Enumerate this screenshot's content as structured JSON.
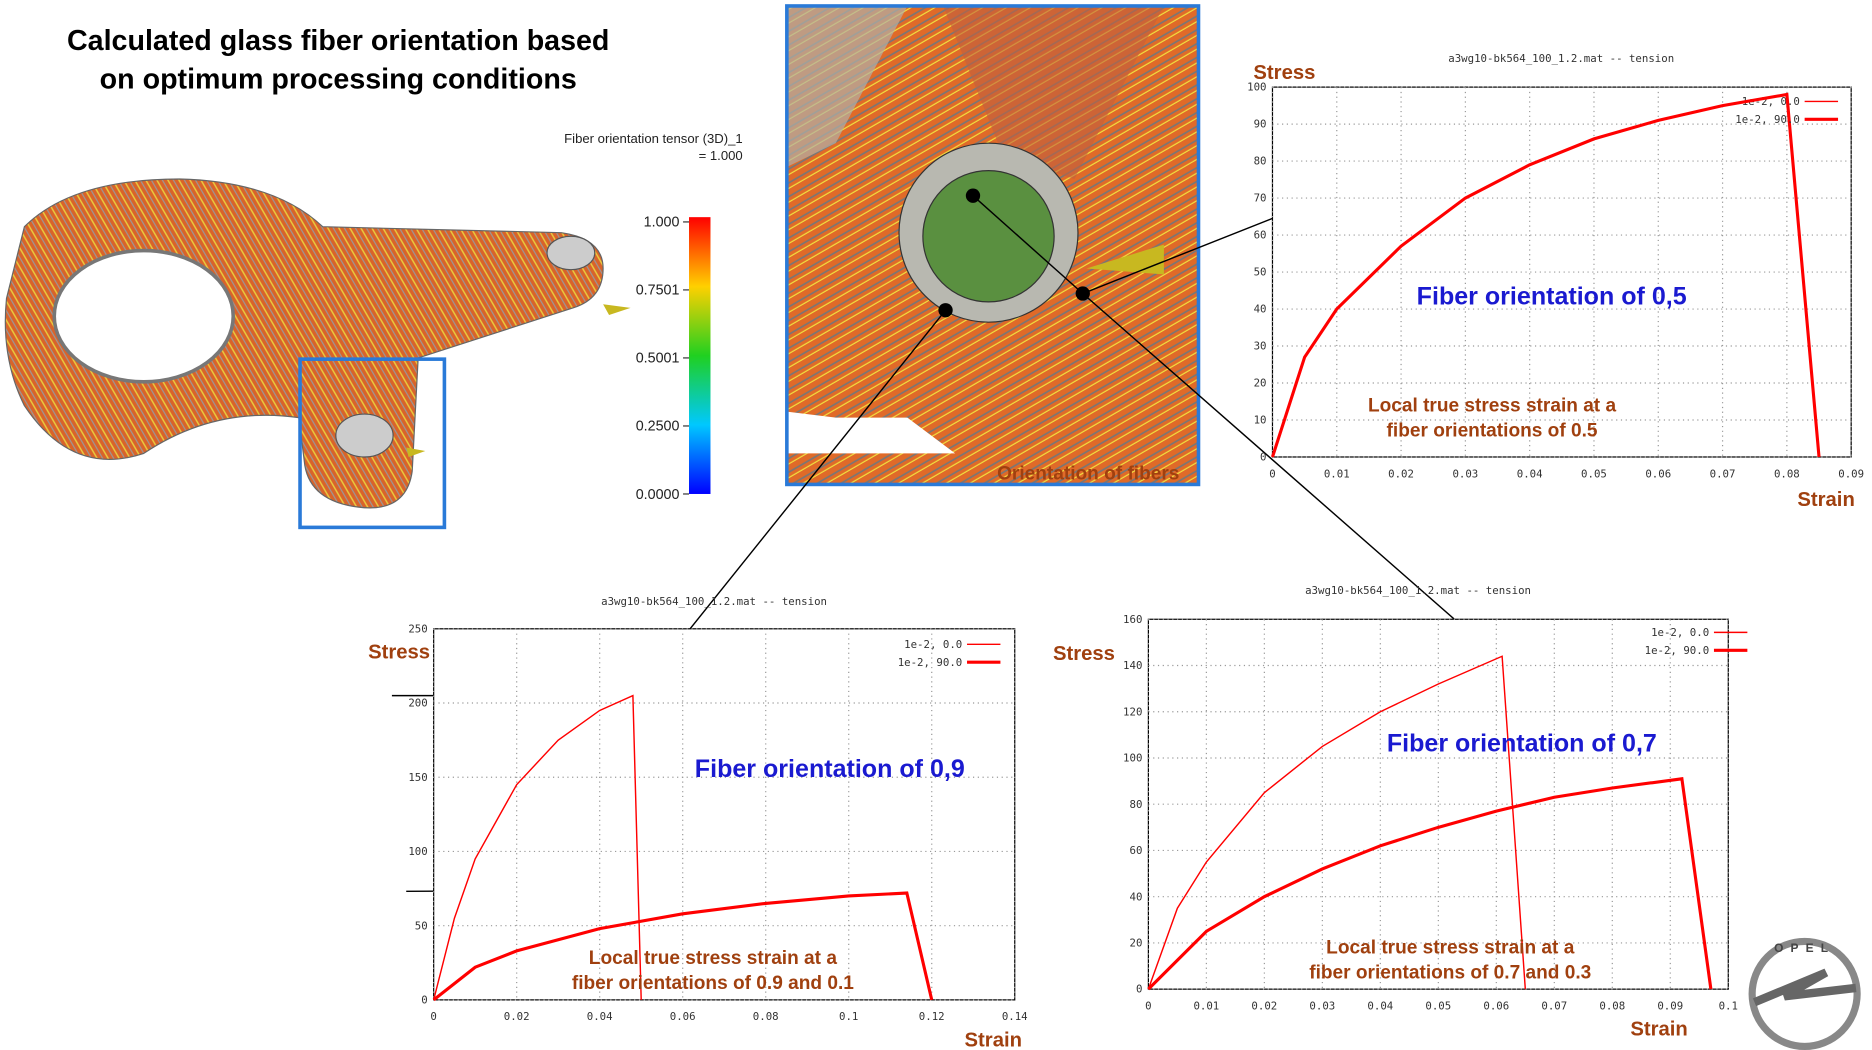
{
  "header": {
    "title": [
      "Calculated glass fiber orientation based",
      "on optimum processing conditions"
    ]
  },
  "colorbar": {
    "title": [
      "Fiber orientation tensor (3D)_1",
      "= 1.000"
    ],
    "lim": [
      0,
      1
    ],
    "ticks": [
      {
        "value": 1,
        "label": "1.000"
      },
      {
        "value": 0.7501,
        "label": "0.7501"
      },
      {
        "value": 0.5001,
        "label": "0.5001"
      },
      {
        "value": 0.25,
        "label": "0.2500"
      },
      {
        "value": 0,
        "label": "0.0000"
      }
    ]
  },
  "image_label": "Orientation of fibers",
  "logo": "OPEL",
  "chart_data": [
    {
      "type": "line",
      "title": "a3wg10-bk564_100_1.2.mat -- tension",
      "ylabel": "Stress",
      "xlabel": "Strain",
      "annotation": "Fiber orientation of 0,5",
      "note": [
        "Local true stress strain at a",
        "fiber orientations of 0.5"
      ],
      "xlim": [
        0,
        0.09
      ],
      "xticks": [
        0,
        0.01,
        0.02,
        0.03,
        0.04,
        0.05,
        0.06,
        0.07,
        0.08,
        0.09
      ],
      "ylim": [
        0,
        100
      ],
      "yticks": [
        0,
        10,
        20,
        30,
        40,
        50,
        60,
        70,
        80,
        90,
        100
      ],
      "grid": true,
      "series": [
        {
          "name": "1e-2, 0.0",
          "color": "#ff0000",
          "x": [
            0,
            0.005,
            0.01,
            0.02,
            0.03,
            0.04,
            0.05,
            0.06,
            0.07,
            0.08,
            0.085
          ],
          "values": [
            0,
            27,
            40,
            57,
            70,
            79,
            86,
            91,
            95,
            98,
            0
          ]
        },
        {
          "name": "1e-2, 90.0",
          "color": "#ff0000",
          "x": [
            0,
            0.005,
            0.01,
            0.02,
            0.03,
            0.04,
            0.05,
            0.06,
            0.07,
            0.08,
            0.085
          ],
          "values": [
            0,
            27,
            40,
            57,
            70,
            79,
            86,
            91,
            95,
            98,
            0
          ]
        }
      ]
    },
    {
      "type": "line",
      "title": "a3wg10-bk564_100_1.2.mat -- tension",
      "ylabel": "Stress",
      "xlabel": "Strain",
      "annotation": "Fiber orientation of 0,9",
      "note": [
        "Local true stress strain at a",
        "fiber orientations of 0.9 and  0.1"
      ],
      "xlim": [
        0,
        0.14
      ],
      "xticks": [
        0,
        0.02,
        0.04,
        0.06,
        0.08,
        0.1,
        0.12,
        0.14
      ],
      "ylim": [
        0,
        250
      ],
      "yticks": [
        0,
        50,
        100,
        150,
        200,
        250
      ],
      "grid": true,
      "series": [
        {
          "name": "1e-2, 0.0",
          "color": "#ff0000",
          "x": [
            0,
            0.005,
            0.01,
            0.02,
            0.03,
            0.04,
            0.048,
            0.05
          ],
          "values": [
            0,
            55,
            95,
            145,
            175,
            195,
            205,
            0
          ]
        },
        {
          "name": "1e-2, 90.0",
          "color": "#ff0000",
          "x": [
            0,
            0.01,
            0.02,
            0.04,
            0.06,
            0.08,
            0.1,
            0.114,
            0.12
          ],
          "values": [
            0,
            22,
            33,
            48,
            58,
            65,
            70,
            72,
            0
          ]
        }
      ]
    },
    {
      "type": "line",
      "title": "a3wg10-bk564_100_1.2.mat -- tension",
      "ylabel": "Stress",
      "xlabel": "Strain",
      "annotation": "Fiber orientation of 0,7",
      "note": [
        "Local true stress strain at a",
        "fiber orientations of 0.7 and 0.3"
      ],
      "xlim": [
        0,
        0.1
      ],
      "xticks": [
        0,
        0.01,
        0.02,
        0.03,
        0.04,
        0.05,
        0.06,
        0.07,
        0.08,
        0.09,
        0.1
      ],
      "ylim": [
        0,
        160
      ],
      "yticks": [
        0,
        20,
        40,
        60,
        80,
        100,
        120,
        140,
        160
      ],
      "grid": true,
      "series": [
        {
          "name": "1e-2, 0.0",
          "color": "#ff0000",
          "x": [
            0,
            0.005,
            0.01,
            0.02,
            0.03,
            0.04,
            0.05,
            0.061,
            0.065
          ],
          "values": [
            0,
            35,
            55,
            85,
            105,
            120,
            132,
            144,
            0
          ]
        },
        {
          "name": "1e-2, 90.0",
          "color": "#ff0000",
          "x": [
            0,
            0.01,
            0.02,
            0.03,
            0.04,
            0.05,
            0.06,
            0.07,
            0.08,
            0.092,
            0.097
          ],
          "values": [
            0,
            25,
            40,
            52,
            62,
            70,
            77,
            83,
            87,
            91,
            0
          ]
        }
      ]
    }
  ]
}
